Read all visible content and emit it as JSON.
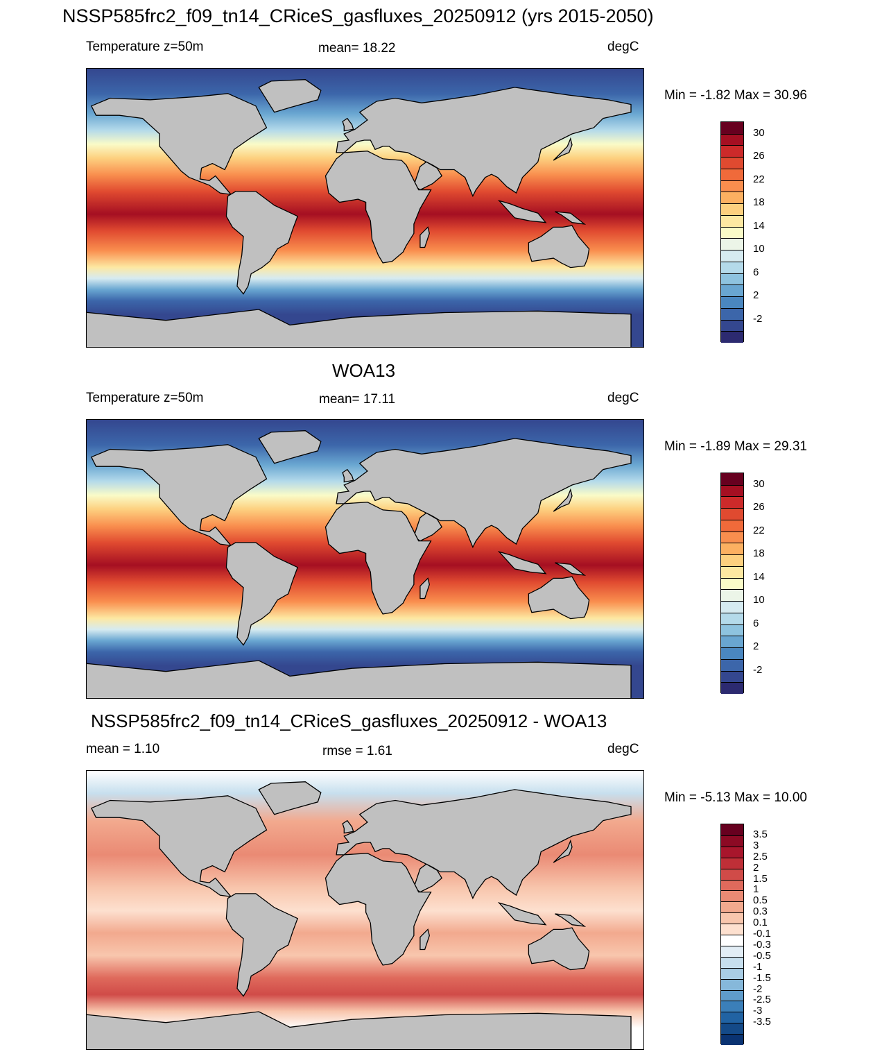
{
  "title": "NSSP585frc2_f09_tn14_CRiceS_gasfluxes_20250912 (yrs 2015-2050)",
  "colors": {
    "land": "#c0c0c0",
    "outline": "#000000"
  },
  "panels": [
    {
      "id": "model",
      "header": "",
      "left_label": "Temperature z=50m",
      "center_label": "mean=  18.22",
      "right_label": "degC",
      "minmax": "Min =  -1.82 Max =  30.96",
      "colorbar": {
        "labels": [
          "30",
          "26",
          "22",
          "18",
          "14",
          "10",
          "6",
          "2",
          "-2"
        ],
        "colors": [
          "#67001f",
          "#a50f22",
          "#cc2a2a",
          "#e04a30",
          "#f06a3a",
          "#f98e4e",
          "#fcb061",
          "#fdd07f",
          "#fde8a2",
          "#fafbc8",
          "#ecf5e8",
          "#d6ebf1",
          "#b4daea",
          "#8ec3df",
          "#69a6d1",
          "#4a87c0",
          "#3c66aa",
          "#34478f",
          "#2c2a70"
        ]
      }
    },
    {
      "id": "obs",
      "header": "WOA13",
      "left_label": "Temperature z=50m",
      "center_label": "mean=  17.11",
      "right_label": "degC",
      "minmax": "Min =  -1.89 Max =  29.31",
      "colorbar": {
        "labels": [
          "30",
          "26",
          "22",
          "18",
          "14",
          "10",
          "6",
          "2",
          "-2"
        ],
        "colors": [
          "#67001f",
          "#a50f22",
          "#cc2a2a",
          "#e04a30",
          "#f06a3a",
          "#f98e4e",
          "#fcb061",
          "#fdd07f",
          "#fde8a2",
          "#fafbc8",
          "#ecf5e8",
          "#d6ebf1",
          "#b4daea",
          "#8ec3df",
          "#69a6d1",
          "#4a87c0",
          "#3c66aa",
          "#34478f",
          "#2c2a70"
        ]
      }
    },
    {
      "id": "diff",
      "header": "NSSP585frc2_f09_tn14_CRiceS_gasfluxes_20250912 - WOA13",
      "left_label": "mean =   1.10",
      "center_label": "rmse =   1.61",
      "right_label": "degC",
      "minmax": "Min =  -5.13 Max =  10.00",
      "colorbar": {
        "labels": [
          "3.5",
          "3",
          "2.5",
          "2",
          "1.5",
          "1",
          "0.5",
          "0.3",
          "0.1",
          "-0.1",
          "-0.3",
          "-0.5",
          "-1",
          "-1.5",
          "-2",
          "-2.5",
          "-3",
          "-3.5"
        ],
        "colors": [
          "#67001f",
          "#8c0a24",
          "#a8162c",
          "#bf2f37",
          "#d04b48",
          "#df6a5c",
          "#ea8a74",
          "#f2a98e",
          "#f8c6ad",
          "#fde0cf",
          "#ffffff",
          "#e2edf5",
          "#c7dfee",
          "#a9cde5",
          "#86b8da",
          "#5f9ccb",
          "#3b7fb9",
          "#2163a3",
          "#144a88",
          "#0a3372"
        ]
      }
    }
  ]
}
